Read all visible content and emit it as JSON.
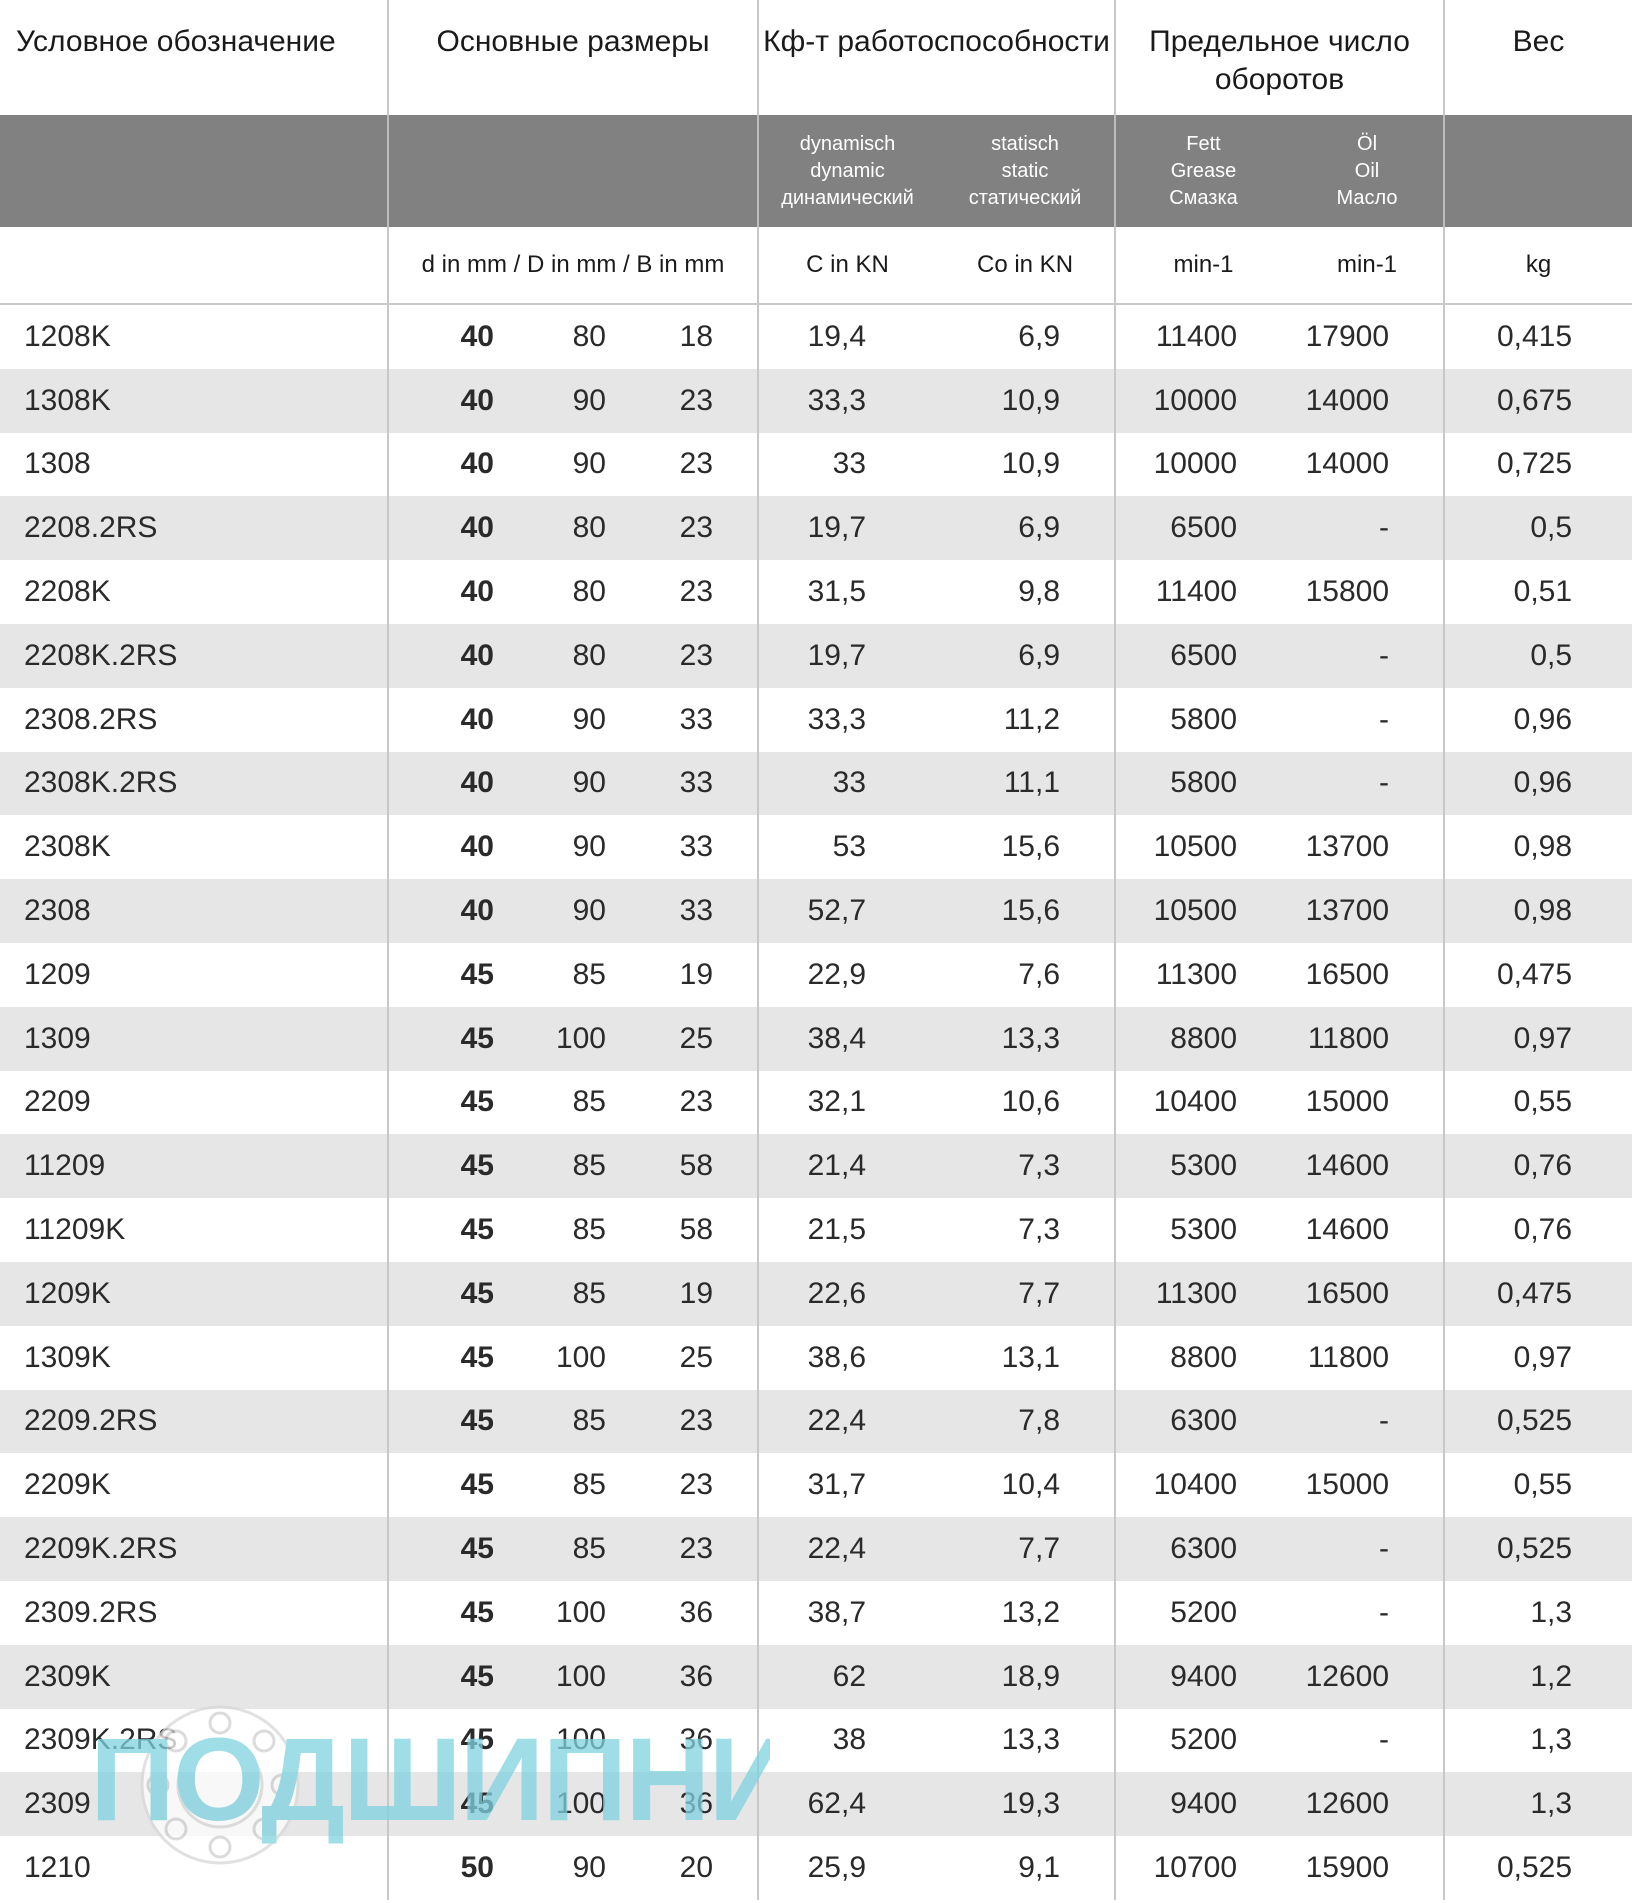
{
  "headers": {
    "designation": "Условное обозначение",
    "dimensions": "Основные размеры",
    "load_rating": "Кф-т работоспособности",
    "speed_limit": "Предельное число оборотов",
    "weight": "Вес"
  },
  "subheaders": {
    "dynamic_1": "dynamisch",
    "dynamic_2": "dynamic",
    "dynamic_3": "динамический",
    "static_1": "statisch",
    "static_2": "static",
    "static_3": "статический",
    "grease_1": "Fett",
    "grease_2": "Grease",
    "grease_3": "Смазка",
    "oil_1": "Öl",
    "oil_2": "Oil",
    "oil_3": "Масло"
  },
  "units": {
    "dimensions": "d in mm / D in mm / B in mm",
    "c": "C in KN",
    "co": "Co in KN",
    "fett": "min-1",
    "oil": "min-1",
    "weight": "kg"
  },
  "rows": [
    {
      "name": "1208K",
      "d": "40",
      "D": "80",
      "B": "18",
      "C": "19,4",
      "Co": "6,9",
      "fett": "11400",
      "oil": "17900",
      "w": "0,415"
    },
    {
      "name": "1308K",
      "d": "40",
      "D": "90",
      "B": "23",
      "C": "33,3",
      "Co": "10,9",
      "fett": "10000",
      "oil": "14000",
      "w": "0,675"
    },
    {
      "name": "1308",
      "d": "40",
      "D": "90",
      "B": "23",
      "C": "33",
      "Co": "10,9",
      "fett": "10000",
      "oil": "14000",
      "w": "0,725"
    },
    {
      "name": "2208.2RS",
      "d": "40",
      "D": "80",
      "B": "23",
      "C": "19,7",
      "Co": "6,9",
      "fett": "6500",
      "oil": "-",
      "w": "0,5"
    },
    {
      "name": "2208K",
      "d": "40",
      "D": "80",
      "B": "23",
      "C": "31,5",
      "Co": "9,8",
      "fett": "11400",
      "oil": "15800",
      "w": "0,51"
    },
    {
      "name": "2208K.2RS",
      "d": "40",
      "D": "80",
      "B": "23",
      "C": "19,7",
      "Co": "6,9",
      "fett": "6500",
      "oil": "-",
      "w": "0,5"
    },
    {
      "name": "2308.2RS",
      "d": "40",
      "D": "90",
      "B": "33",
      "C": "33,3",
      "Co": "11,2",
      "fett": "5800",
      "oil": "-",
      "w": "0,96"
    },
    {
      "name": "2308K.2RS",
      "d": "40",
      "D": "90",
      "B": "33",
      "C": "33",
      "Co": "11,1",
      "fett": "5800",
      "oil": "-",
      "w": "0,96"
    },
    {
      "name": "2308K",
      "d": "40",
      "D": "90",
      "B": "33",
      "C": "53",
      "Co": "15,6",
      "fett": "10500",
      "oil": "13700",
      "w": "0,98"
    },
    {
      "name": "2308",
      "d": "40",
      "D": "90",
      "B": "33",
      "C": "52,7",
      "Co": "15,6",
      "fett": "10500",
      "oil": "13700",
      "w": "0,98"
    },
    {
      "name": "1209",
      "d": "45",
      "D": "85",
      "B": "19",
      "C": "22,9",
      "Co": "7,6",
      "fett": "11300",
      "oil": "16500",
      "w": "0,475"
    },
    {
      "name": "1309",
      "d": "45",
      "D": "100",
      "B": "25",
      "C": "38,4",
      "Co": "13,3",
      "fett": "8800",
      "oil": "11800",
      "w": "0,97"
    },
    {
      "name": "2209",
      "d": "45",
      "D": "85",
      "B": "23",
      "C": "32,1",
      "Co": "10,6",
      "fett": "10400",
      "oil": "15000",
      "w": "0,55"
    },
    {
      "name": "11209",
      "d": "45",
      "D": "85",
      "B": "58",
      "C": "21,4",
      "Co": "7,3",
      "fett": "5300",
      "oil": "14600",
      "w": "0,76"
    },
    {
      "name": "11209K",
      "d": "45",
      "D": "85",
      "B": "58",
      "C": "21,5",
      "Co": "7,3",
      "fett": "5300",
      "oil": "14600",
      "w": "0,76"
    },
    {
      "name": "1209K",
      "d": "45",
      "D": "85",
      "B": "19",
      "C": "22,6",
      "Co": "7,7",
      "fett": "11300",
      "oil": "16500",
      "w": "0,475"
    },
    {
      "name": "1309K",
      "d": "45",
      "D": "100",
      "B": "25",
      "C": "38,6",
      "Co": "13,1",
      "fett": "8800",
      "oil": "11800",
      "w": "0,97"
    },
    {
      "name": "2209.2RS",
      "d": "45",
      "D": "85",
      "B": "23",
      "C": "22,4",
      "Co": "7,8",
      "fett": "6300",
      "oil": "-",
      "w": "0,525"
    },
    {
      "name": "2209K",
      "d": "45",
      "D": "85",
      "B": "23",
      "C": "31,7",
      "Co": "10,4",
      "fett": "10400",
      "oil": "15000",
      "w": "0,55"
    },
    {
      "name": "2209K.2RS",
      "d": "45",
      "D": "85",
      "B": "23",
      "C": "22,4",
      "Co": "7,7",
      "fett": "6300",
      "oil": "-",
      "w": "0,525"
    },
    {
      "name": "2309.2RS",
      "d": "45",
      "D": "100",
      "B": "36",
      "C": "38,7",
      "Co": "13,2",
      "fett": "5200",
      "oil": "-",
      "w": "1,3"
    },
    {
      "name": "2309K",
      "d": "45",
      "D": "100",
      "B": "36",
      "C": "62",
      "Co": "18,9",
      "fett": "9400",
      "oil": "12600",
      "w": "1,2"
    },
    {
      "name": "2309K.2RS",
      "d": "45",
      "D": "100",
      "B": "36",
      "C": "38",
      "Co": "13,3",
      "fett": "5200",
      "oil": "-",
      "w": "1,3"
    },
    {
      "name": "2309",
      "d": "45",
      "D": "100",
      "B": "36",
      "C": "62,4",
      "Co": "19,3",
      "fett": "9400",
      "oil": "12600",
      "w": "1,3"
    },
    {
      "name": "1210",
      "d": "50",
      "D": "90",
      "B": "20",
      "C": "25,9",
      "Co": "9,1",
      "fett": "10700",
      "oil": "15900",
      "w": "0,525"
    }
  ],
  "watermark": {
    "text": "ПОДШИПНИКЪ",
    "color": "#7fd3e0"
  },
  "colors": {
    "header_band": "#818181",
    "stripe": "#e6e6e6"
  }
}
